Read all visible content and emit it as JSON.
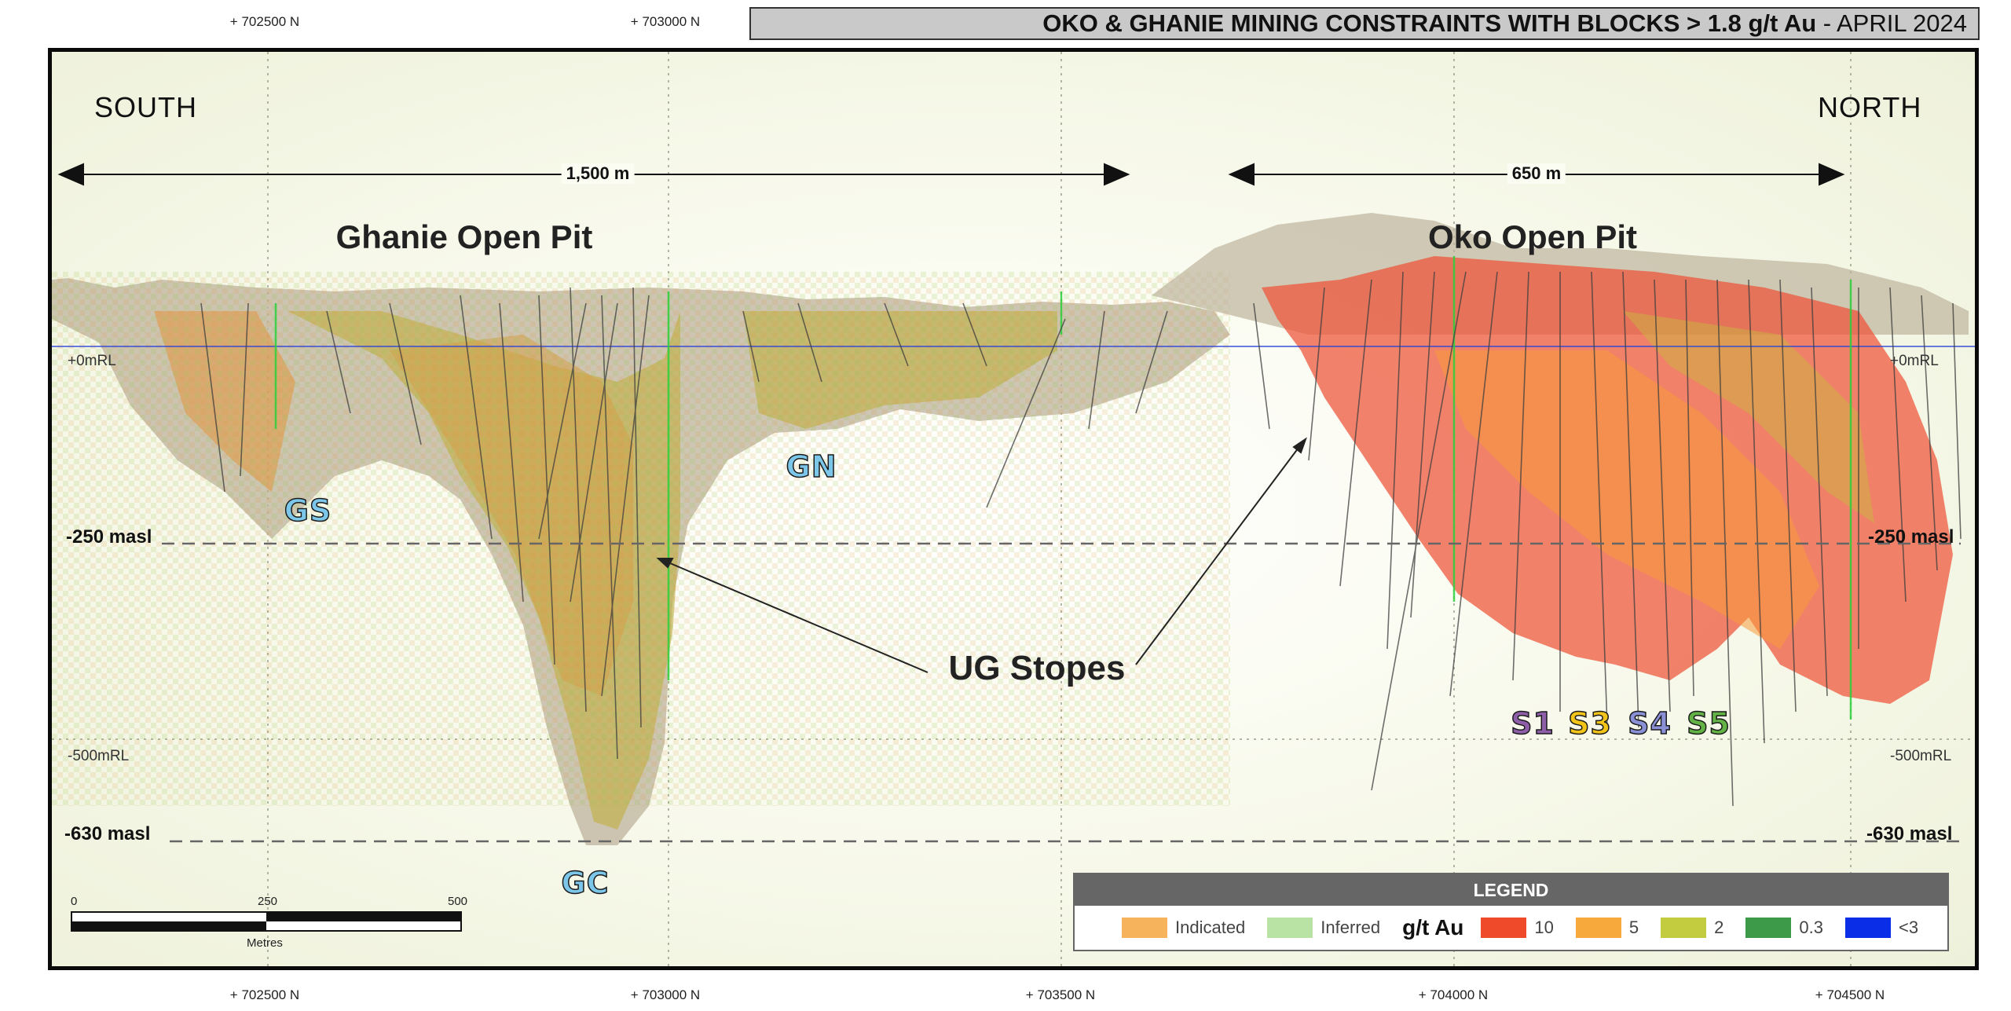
{
  "title": {
    "bold": "OKO & GHANIE MINING CONSTRAINTS WITH BLOCKS > 1.8 g/t Au",
    "light": " - APRIL 2024"
  },
  "northings": [
    "+ 702500 N",
    "+ 703000 N",
    "+ 703500 N",
    "+ 704000 N",
    "+ 704500 N"
  ],
  "directions": {
    "south": "SOUTH",
    "north": "NORTH"
  },
  "distances": {
    "ghanie": "1,500 m",
    "oko": "650 m"
  },
  "pits": {
    "ghanie": "Ghanie Open Pit",
    "oko": "Oko Open Pit"
  },
  "levels": {
    "zero_left": "+0mRL",
    "zero_right": "+0mRL",
    "m500_left": "-500mRL",
    "m500_right": "-500mRL",
    "m250_left": "-250 masl",
    "m250_right": "-250 masl",
    "m630_left": "-630 masl",
    "m630_right": "-630 masl"
  },
  "zones": {
    "gs": "GS",
    "gn": "GN",
    "gc": "GC",
    "s1": "S1",
    "s3": "S3",
    "s4": "S4",
    "s5": "S5"
  },
  "zone_colors": {
    "gs": "#7cc6ea",
    "gn": "#7cc6ea",
    "gc": "#7cc6ea",
    "s1": "#8e5ea8",
    "s3": "#f2c318",
    "s4": "#8a90d6",
    "s5": "#62b245"
  },
  "callout": "UG Stopes",
  "scale": {
    "t0": "0",
    "t1": "250",
    "t2": "500",
    "unit": "Metres"
  },
  "legend": {
    "title": "LEGEND",
    "indicated": "Indicated",
    "inferred": "Inferred",
    "grade_label": "g/t Au",
    "grades": [
      {
        "label": "10",
        "color": "#ef4a2a"
      },
      {
        "label": "5",
        "color": "#f7a93b"
      },
      {
        "label": "2",
        "color": "#c3cc3e"
      },
      {
        "label": "0.3",
        "color": "#3c9a48"
      },
      {
        "label": "<3",
        "color": "#0a2de8"
      }
    ],
    "indicated_color": "#f7b25c",
    "inferred_color": "#b8e3a4"
  }
}
